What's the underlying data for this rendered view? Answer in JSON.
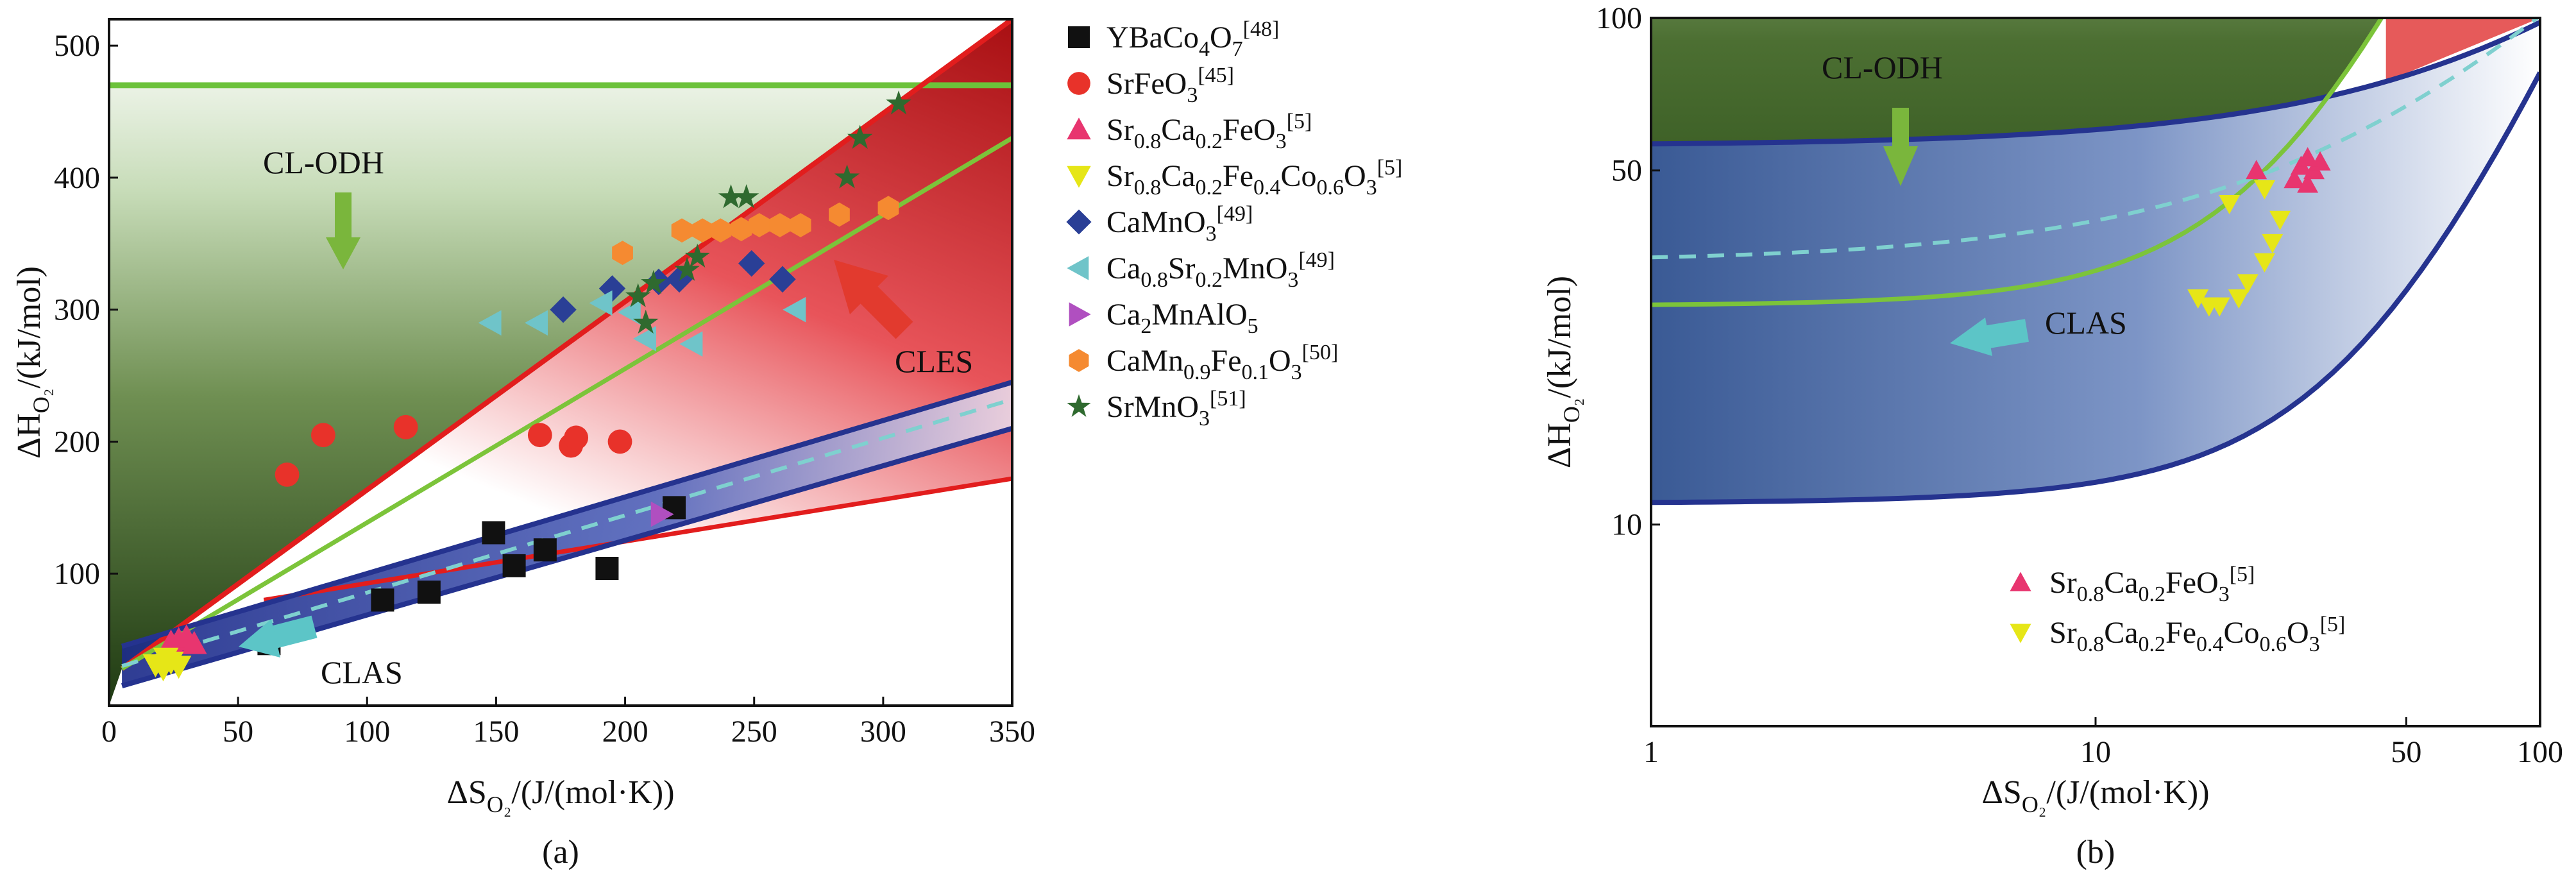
{
  "figure": {
    "panel_labels": [
      "(a)",
      "(b)"
    ]
  },
  "chart_data": [
    {
      "panel": "(a)",
      "type": "scatter",
      "title": "",
      "xlabel_parts": [
        "ΔS",
        "O₂",
        "/(J/(mol·K))"
      ],
      "ylabel_parts": [
        "ΔH",
        "O₂",
        "/(kJ/mol)"
      ],
      "xlim": [
        0,
        350
      ],
      "ylim": [
        0,
        520
      ],
      "xticks": [
        0,
        50,
        100,
        150,
        200,
        250,
        300,
        350
      ],
      "yticks": [
        100,
        200,
        300,
        400,
        500
      ],
      "regions": {
        "cl_odh": {
          "label": "CL-ODH",
          "y_limit": 470,
          "color": "#4c8a2c"
        },
        "cles": {
          "label": "CLES",
          "upper_line": [
            [
              5,
              28
            ],
            [
              350,
              520
            ]
          ],
          "lower_line": [
            [
              5,
              28
            ],
            [
              350,
              430
            ]
          ],
          "color": "#c81e1e"
        },
        "clas": {
          "label": "CLAS",
          "upper_line": [
            [
              5,
              45
            ],
            [
              350,
              245
            ]
          ],
          "lower_line": [
            [
              5,
              15
            ],
            [
              350,
              210
            ]
          ],
          "dashed_line": [
            [
              5,
              30
            ],
            [
              350,
              232
            ]
          ],
          "color": "#2b3c9a"
        },
        "red_lower_line": [
          [
            60,
            80
          ],
          [
            350,
            172
          ]
        ]
      },
      "series": [
        {
          "name": "YBaCo4O7",
          "label_parts": [
            [
              "YBaCo",
              ""
            ],
            [
              "4",
              "sub"
            ],
            [
              "O",
              ""
            ],
            [
              "7",
              "sub"
            ],
            [
              "[48]",
              "sup"
            ]
          ],
          "marker": "square",
          "color": "#111111",
          "points": [
            [
              62,
              47
            ],
            [
              106,
              80
            ],
            [
              124,
              86
            ],
            [
              149,
              131
            ],
            [
              157,
              106
            ],
            [
              169,
              118
            ],
            [
              193,
              104
            ],
            [
              219,
              150
            ]
          ]
        },
        {
          "name": "SrFeO3",
          "label_parts": [
            [
              "SrFeO",
              ""
            ],
            [
              "3",
              "sub"
            ],
            [
              "[45]",
              "sup"
            ]
          ],
          "marker": "circle",
          "color": "#e8322a",
          "points": [
            [
              69,
              175
            ],
            [
              83,
              205
            ],
            [
              115,
              211
            ],
            [
              167,
              205
            ],
            [
              179,
              197
            ],
            [
              181,
              203
            ],
            [
              198,
              200
            ]
          ]
        },
        {
          "name": "Sr0.8Ca0.2FeO3",
          "label_parts": [
            [
              "Sr",
              ""
            ],
            [
              "0.8",
              "sub"
            ],
            [
              "Ca",
              ""
            ],
            [
              "0.2",
              "sub"
            ],
            [
              "FeO",
              ""
            ],
            [
              "3",
              "sub"
            ],
            [
              "[5]",
              "sup"
            ]
          ],
          "marker": "triangle-up",
          "color": "#e8356f",
          "points": [
            [
              24,
              48
            ],
            [
              27,
              50
            ],
            [
              30,
              52
            ],
            [
              33,
              47
            ]
          ]
        },
        {
          "name": "Sr0.8Ca0.2Fe0.4Co0.6O3",
          "label_parts": [
            [
              "Sr",
              ""
            ],
            [
              "0.8",
              "sub"
            ],
            [
              "Ca",
              ""
            ],
            [
              "0.2",
              "sub"
            ],
            [
              "Fe",
              ""
            ],
            [
              "0.4",
              "sub"
            ],
            [
              "Co",
              ""
            ],
            [
              "0.6",
              "sub"
            ],
            [
              "O",
              ""
            ],
            [
              "3",
              "sub"
            ],
            [
              "[5]",
              "sup"
            ]
          ],
          "marker": "triangle-down",
          "color": "#e6e617",
          "points": [
            [
              18,
              31
            ],
            [
              21,
              28
            ],
            [
              24,
              33
            ],
            [
              27,
              30
            ],
            [
              22,
              36
            ]
          ]
        },
        {
          "name": "CaMnO3",
          "label_parts": [
            [
              "CaMnO",
              ""
            ],
            [
              "3",
              "sub"
            ],
            [
              "[49]",
              "sup"
            ]
          ],
          "marker": "diamond",
          "color": "#2a3f96",
          "points": [
            [
              176,
              300
            ],
            [
              195,
              316
            ],
            [
              213,
              321
            ],
            [
              221,
              323
            ],
            [
              249,
              335
            ],
            [
              261,
              323
            ]
          ]
        },
        {
          "name": "Ca0.8Sr0.2MnO3",
          "label_parts": [
            [
              "Ca",
              ""
            ],
            [
              "0.8",
              "sub"
            ],
            [
              "Sr",
              ""
            ],
            [
              "0.2",
              "sub"
            ],
            [
              "MnO",
              ""
            ],
            [
              "3",
              "sub"
            ],
            [
              "[49]",
              "sup"
            ]
          ],
          "marker": "triangle-left",
          "color": "#6fc4c9",
          "points": [
            [
              148,
              290
            ],
            [
              166,
              290
            ],
            [
              191,
              305
            ],
            [
              202,
              298
            ],
            [
              208,
              278
            ],
            [
              226,
              274
            ],
            [
              266,
              300
            ]
          ]
        },
        {
          "name": "Ca2MnAlO5",
          "label_parts": [
            [
              "Ca",
              ""
            ],
            [
              "2",
              "sub"
            ],
            [
              "MnAlO",
              ""
            ],
            [
              "5",
              "sub"
            ]
          ],
          "marker": "triangle-right",
          "color": "#b04fc0",
          "points": [
            [
              214,
              145
            ]
          ]
        },
        {
          "name": "CaMn0.9Fe0.1O3",
          "label_parts": [
            [
              "CaMn",
              ""
            ],
            [
              "0.9",
              "sub"
            ],
            [
              "Fe",
              ""
            ],
            [
              "0.1",
              "sub"
            ],
            [
              "O",
              ""
            ],
            [
              "3",
              "sub"
            ],
            [
              "[50]",
              "sup"
            ]
          ],
          "marker": "hexagon",
          "color": "#f58a31",
          "points": [
            [
              199,
              343
            ],
            [
              222,
              360
            ],
            [
              230,
              360
            ],
            [
              237,
              360
            ],
            [
              245,
              361
            ],
            [
              252,
              364
            ],
            [
              260,
              364
            ],
            [
              268,
              364
            ],
            [
              283,
              372
            ],
            [
              302,
              377
            ]
          ]
        },
        {
          "name": "SrMnO3",
          "label_parts": [
            [
              "SrMnO",
              ""
            ],
            [
              "3",
              "sub"
            ],
            [
              "[51]",
              "sup"
            ]
          ],
          "marker": "star",
          "color": "#2f6a2f",
          "points": [
            [
              205,
              310
            ],
            [
              208,
              290
            ],
            [
              224,
              330
            ],
            [
              228,
              340
            ],
            [
              241,
              385
            ],
            [
              247,
              385
            ],
            [
              286,
              400
            ],
            [
              291,
              430
            ],
            [
              306,
              456
            ],
            [
              211,
              320
            ]
          ]
        }
      ],
      "annotations": [
        {
          "text": "CL-ODH"
        },
        {
          "text": "CLES"
        },
        {
          "text": "CLAS"
        }
      ]
    },
    {
      "panel": "(b)",
      "type": "scatter",
      "title": "",
      "xscale": "log",
      "yscale": "log",
      "xlabel_parts": [
        "ΔS",
        "O₂",
        "/(J/(mol·K))"
      ],
      "ylabel_parts": [
        "ΔH",
        "O₂",
        "/(kJ/mol)"
      ],
      "xlim": [
        1,
        100
      ],
      "ylim": [
        4,
        100
      ],
      "xticks": [
        1,
        10,
        50,
        100
      ],
      "yticks": [
        10,
        50,
        100
      ],
      "series": [
        {
          "name": "Sr0.8Ca0.2FeO3",
          "label_parts": [
            [
              "Sr",
              ""
            ],
            [
              "0.8",
              "sub"
            ],
            [
              "Ca",
              ""
            ],
            [
              "0.2",
              "sub"
            ],
            [
              "FeO",
              ""
            ],
            [
              "3",
              "sub"
            ],
            [
              "[5]",
              "sup"
            ]
          ],
          "marker": "triangle-up",
          "color": "#e8356f",
          "points": [
            [
              28,
              48
            ],
            [
              29,
              51
            ],
            [
              30,
              47
            ],
            [
              31,
              50
            ],
            [
              32,
              52
            ],
            [
              30,
              53
            ],
            [
              23,
              50
            ]
          ]
        },
        {
          "name": "Sr0.8Ca0.2Fe0.4Co0.6O3",
          "label_parts": [
            [
              "Sr",
              ""
            ],
            [
              "0.8",
              "sub"
            ],
            [
              "Ca",
              ""
            ],
            [
              "0.2",
              "sub"
            ],
            [
              "Fe",
              ""
            ],
            [
              "0.4",
              "sub"
            ],
            [
              "Co",
              ""
            ],
            [
              "0.6",
              "sub"
            ],
            [
              "O",
              ""
            ],
            [
              "3",
              "sub"
            ],
            [
              "[5]",
              "sup"
            ]
          ],
          "marker": "triangle-down",
          "color": "#e6e617",
          "points": [
            [
              17,
              28
            ],
            [
              18,
              27
            ],
            [
              19,
              27
            ],
            [
              21,
              28
            ],
            [
              22,
              30
            ],
            [
              24,
              33
            ],
            [
              25,
              36
            ],
            [
              26,
              40
            ],
            [
              20,
              43
            ],
            [
              24,
              46
            ]
          ]
        }
      ],
      "annotations": [
        {
          "text": "CL-ODH"
        },
        {
          "text": "CLAS"
        }
      ]
    }
  ]
}
